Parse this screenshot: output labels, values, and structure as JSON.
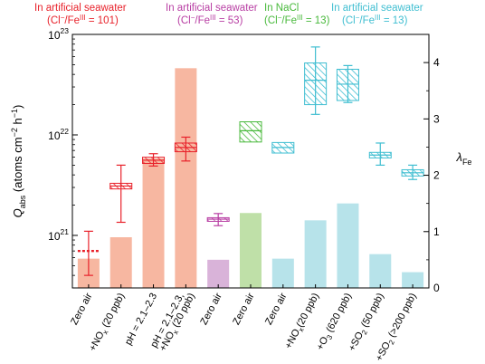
{
  "chart_data": {
    "type": "bar",
    "title": "",
    "y_left": {
      "label_main": "Q",
      "label_sub": "abs",
      "label_units": " (atoms cm",
      "label_sup1": "−2",
      "label_mid": " h",
      "label_sup2": "−1",
      "label_end": ")",
      "scale": "log",
      "ylim": [
        3e+20,
        1e+23
      ],
      "ticks": [
        {
          "base": "10",
          "exp": "21",
          "value": 1e+21
        },
        {
          "base": "10",
          "exp": "22",
          "value": 1e+22
        },
        {
          "base": "10",
          "exp": "23",
          "value": 1e+23
        }
      ]
    },
    "y_right": {
      "label_main": "λ",
      "label_sub": "Fe",
      "scale": "linear",
      "ylim": [
        0,
        4.5
      ],
      "ticks": [
        "0",
        "1",
        "2",
        "3",
        "4"
      ]
    },
    "groups": [
      {
        "title": "In artificial seawater",
        "sub_pre": "(Cl",
        "sub_sup1": "−",
        "sub_mid": "/Fe",
        "sub_sup2": "III",
        "sub_post": " = 101)",
        "color": "#e8212a"
      },
      {
        "title": "In artificial seawater",
        "sub_pre": "(Cl",
        "sub_sup1": "−",
        "sub_mid": "/Fe",
        "sub_sup2": "III",
        "sub_post": " = 53)",
        "color": "#b83ea3"
      },
      {
        "title": "In NaCl",
        "sub_pre": "(Cl",
        "sub_sup1": "−",
        "sub_mid": "/Fe",
        "sub_sup2": "III",
        "sub_post": " = 13)",
        "color": "#48b93b"
      },
      {
        "title": "In artificial seawater",
        "sub_pre": "(Cl",
        "sub_sup1": "−",
        "sub_mid": "/Fe",
        "sub_sup2": "III",
        "sub_post": " = 13)",
        "color": "#3fbed1"
      }
    ],
    "categories": [
      {
        "lines": [
          "Zero air"
        ]
      },
      {
        "lines": [
          "+NO",
          "x",
          " (20 ppb)"
        ]
      },
      {
        "lines": [
          "pH = 2.1–2.3"
        ]
      },
      {
        "lines": [
          "pH = 2.1–2.3,",
          "+NO",
          "x",
          " (20 ppb)"
        ]
      },
      {
        "lines": [
          "Zero air"
        ]
      },
      {
        "lines": [
          "Zero air"
        ]
      },
      {
        "lines": [
          "Zero air"
        ]
      },
      {
        "lines": [
          "+NO",
          "x",
          "(20 ppb)"
        ]
      },
      {
        "lines": [
          "+O",
          "3",
          " (620 ppb)"
        ]
      },
      {
        "lines": [
          "+SO",
          "2",
          " (50 ppb)"
        ]
      },
      {
        "lines": [
          "+SO",
          "2",
          " (>200 ppb)"
        ]
      }
    ],
    "lambda_bars": [
      0.52,
      0.9,
      2.3,
      3.9,
      0.5,
      1.33,
      0.52,
      1.2,
      1.5,
      0.6,
      0.28
    ],
    "q_abs": [
      {
        "median": 7e+20,
        "q1": 6.8e+20,
        "q3": 7.2e+20,
        "err_low": 4e+20,
        "err_high": 1.1e+21,
        "style": "dashed"
      },
      {
        "median": 3.1e+21,
        "q1": 2.9e+21,
        "q3": 3.3e+21,
        "err_low": 1.35e+21,
        "err_high": 5e+21,
        "style": "hatched"
      },
      {
        "median": 5.6e+21,
        "q1": 5.2e+21,
        "q3": 6e+21,
        "err_low": 4.9e+21,
        "err_high": 6.5e+21,
        "style": "hatched"
      },
      {
        "median": 7.5e+21,
        "q1": 6.8e+21,
        "q3": 8.3e+21,
        "err_low": 5.5e+21,
        "err_high": 9.5e+21,
        "style": "hatched"
      },
      {
        "median": 1.45e+21,
        "q1": 1.38e+21,
        "q3": 1.5e+21,
        "err_low": 1.25e+21,
        "err_high": 1.65e+21,
        "style": "hatched"
      },
      {
        "median": 1.1e+22,
        "q1": 8.5e+21,
        "q3": 1.35e+22,
        "err_low": null,
        "err_high": null,
        "style": "hatched"
      },
      {
        "median": 7.5e+21,
        "q1": 6.6e+21,
        "q3": 8.4e+21,
        "err_low": null,
        "err_high": null,
        "style": "hatched"
      },
      {
        "median": 3.5e+22,
        "q1": 2e+22,
        "q3": 5.2e+22,
        "err_low": 1.6e+22,
        "err_high": 7.5e+22,
        "style": "hatched"
      },
      {
        "median": 3.2e+22,
        "q1": 2.2e+22,
        "q3": 4.5e+22,
        "err_low": 2.1e+22,
        "err_high": 4.9e+22,
        "style": "hatched"
      },
      {
        "median": 6.3e+21,
        "q1": 5.9e+21,
        "q3": 6.7e+21,
        "err_low": 5e+21,
        "err_high": 8.3e+21,
        "style": "hatched"
      },
      {
        "median": 4.2e+21,
        "q1": 3.9e+21,
        "q3": 4.5e+21,
        "err_low": 3.6e+21,
        "err_high": 5e+21,
        "style": "hatched"
      }
    ],
    "category_group": [
      0,
      0,
      0,
      0,
      1,
      2,
      3,
      3,
      3,
      3,
      3
    ],
    "bar_colors": [
      "#f7b7a1",
      "#f7b7a1",
      "#f7b7a1",
      "#f7b7a1",
      "#d9b3d9",
      "#bfe0a8",
      "#b7e3ea",
      "#b7e3ea",
      "#b7e3ea",
      "#b7e3ea",
      "#b7e3ea"
    ],
    "grid": false,
    "legend": "top"
  }
}
